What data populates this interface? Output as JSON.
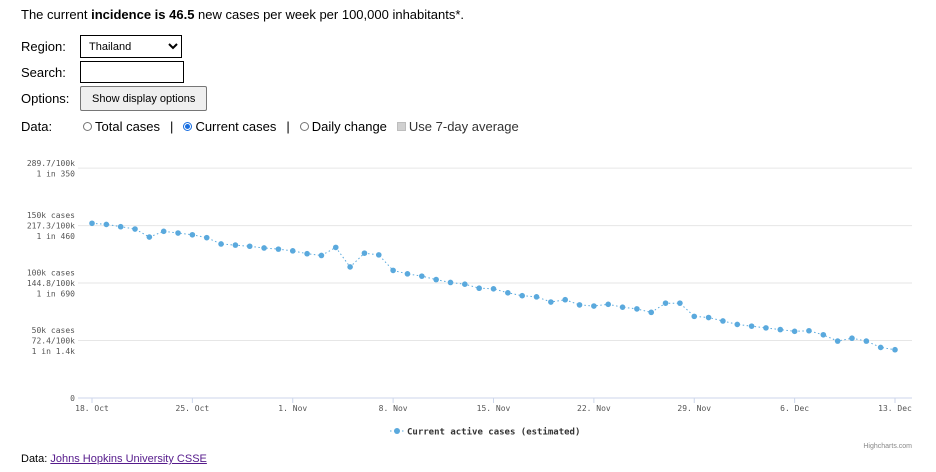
{
  "headline": {
    "prefix": "The current ",
    "bold": "incidence is 46.5",
    "suffix": " new cases per week per 100,000 inhabitants*."
  },
  "form": {
    "region_label": "Region:",
    "region_value": "Thailand",
    "search_label": "Search:",
    "search_value": "",
    "options_label": "Options:",
    "options_button": "Show display options",
    "data_label": "Data:",
    "radios": [
      {
        "label": "Total cases",
        "checked": false
      },
      {
        "label": "Current cases",
        "checked": true
      },
      {
        "label": "Daily change",
        "checked": false
      }
    ],
    "separator": "|",
    "avg_label": "Use 7-day average"
  },
  "chart_data": {
    "type": "line",
    "series": [
      {
        "name": "Current active cases (estimated)",
        "color": "#5aa9dd",
        "x": [
          "18. Oct",
          "19. Oct",
          "20. Oct",
          "21. Oct",
          "22. Oct",
          "23. Oct",
          "24. Oct",
          "25. Oct",
          "26. Oct",
          "27. Oct",
          "28. Oct",
          "29. Oct",
          "30. Oct",
          "31. Oct",
          "1. Nov",
          "2. Nov",
          "3. Nov",
          "4. Nov",
          "5. Nov",
          "6. Nov",
          "7. Nov",
          "8. Nov",
          "9. Nov",
          "10. Nov",
          "11. Nov",
          "12. Nov",
          "13. Nov",
          "14. Nov",
          "15. Nov",
          "16. Nov",
          "17. Nov",
          "18. Nov",
          "19. Nov",
          "20. Nov",
          "21. Nov",
          "22. Nov",
          "23. Nov",
          "24. Nov",
          "25. Nov",
          "26. Nov",
          "27. Nov",
          "28. Nov",
          "29. Nov",
          "30. Nov",
          "1. Dec",
          "2. Dec",
          "3. Dec",
          "4. Dec",
          "5. Dec",
          "6. Dec",
          "7. Dec",
          "8. Dec",
          "9. Dec",
          "10. Dec",
          "11. Dec",
          "12. Dec",
          "13. Dec"
        ],
        "values": [
          152000,
          151000,
          149000,
          147000,
          140000,
          145000,
          143500,
          142000,
          139500,
          134000,
          133000,
          132000,
          130500,
          129500,
          128000,
          125500,
          124000,
          131000,
          114000,
          126000,
          124500,
          111000,
          108000,
          106000,
          103000,
          100500,
          99000,
          95500,
          95000,
          91500,
          89000,
          88000,
          83500,
          85500,
          81000,
          80000,
          81500,
          79000,
          77500,
          74500,
          82500,
          82500,
          71000,
          70000,
          67000,
          64000,
          62500,
          61000,
          59500,
          58000,
          58500,
          55000,
          49500,
          52000,
          49500,
          44000,
          42000
        ]
      }
    ],
    "y_ticks": [
      {
        "value": 0,
        "lines": [
          "0"
        ]
      },
      {
        "value": 50000,
        "lines": [
          "50k cases",
          "72.4/100k",
          "1 in 1.4k"
        ]
      },
      {
        "value": 100000,
        "lines": [
          "100k cases",
          "144.8/100k",
          "1 in 690"
        ]
      },
      {
        "value": 150000,
        "lines": [
          "150k cases",
          "217.3/100k",
          "1 in 460"
        ]
      },
      {
        "value": 200000,
        "lines": [
          "289.7/100k",
          "1 in 350"
        ]
      }
    ],
    "x_ticks": [
      {
        "index": 0,
        "label": "18. Oct"
      },
      {
        "index": 7,
        "label": "25. Oct"
      },
      {
        "index": 14,
        "label": "1. Nov"
      },
      {
        "index": 21,
        "label": "8. Nov"
      },
      {
        "index": 28,
        "label": "15. Nov"
      },
      {
        "index": 35,
        "label": "22. Nov"
      },
      {
        "index": 42,
        "label": "29. Nov"
      },
      {
        "index": 49,
        "label": "6. Dec"
      },
      {
        "index": 56,
        "label": "13. Dec"
      }
    ],
    "ylim": [
      0,
      214000
    ],
    "grid": true,
    "legend": "bottom-center",
    "credits": "Highcharts.com"
  },
  "footer": {
    "prefix": "Data: ",
    "link_text": "Johns Hopkins University CSSE"
  }
}
